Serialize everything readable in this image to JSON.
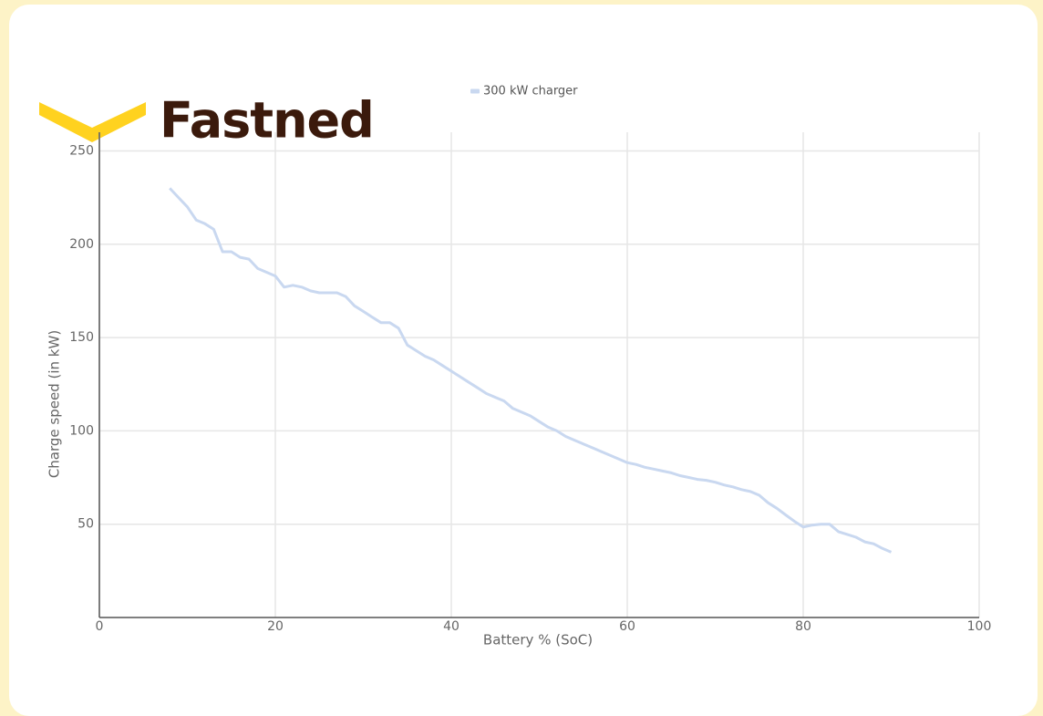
{
  "logo_text": "Fastned",
  "chart_data": {
    "type": "line",
    "x_label": "Battery % (SoC)",
    "y_label": "Charge speed (in kW)",
    "x": [
      8,
      9,
      10,
      11,
      12,
      13,
      14,
      15,
      16,
      17,
      18,
      19,
      20,
      21,
      22,
      23,
      24,
      25,
      26,
      27,
      28,
      29,
      30,
      31,
      32,
      33,
      34,
      35,
      36,
      37,
      38,
      39,
      40,
      41,
      42,
      43,
      44,
      45,
      46,
      47,
      48,
      49,
      50,
      51,
      52,
      53,
      54,
      55,
      56,
      57,
      58,
      59,
      60,
      61,
      62,
      63,
      64,
      65,
      66,
      67,
      68,
      69,
      70,
      71,
      72,
      73,
      74,
      75,
      76,
      77,
      78,
      79,
      80,
      81,
      82,
      83,
      84,
      85,
      86,
      87,
      88,
      89,
      90
    ],
    "series": [
      {
        "name": "300 kW charger",
        "color": "#c9d8f0",
        "values": [
          230,
          225,
          220,
          213,
          211,
          208,
          196,
          196,
          193,
          192,
          187,
          185,
          183,
          177,
          178,
          177,
          175,
          174,
          174,
          174,
          172,
          167,
          164,
          161,
          158,
          158,
          155,
          146,
          143,
          140,
          138,
          135,
          132,
          129,
          126,
          123,
          120,
          118,
          116,
          112,
          110,
          108,
          105,
          102,
          100,
          97,
          95,
          93,
          91,
          89,
          87,
          85,
          83,
          82,
          80.5,
          79.5,
          78.5,
          77.5,
          76,
          75,
          74,
          73.5,
          72.5,
          71,
          70,
          68.5,
          67.5,
          65.5,
          61.5,
          58.5,
          55,
          51.5,
          48.5,
          49.5,
          50,
          50,
          46,
          44.5,
          43,
          40.5,
          39.5,
          37,
          35
        ]
      }
    ],
    "xlim": [
      0,
      100
    ],
    "xticks": [
      0,
      20,
      40,
      60,
      80,
      100
    ],
    "ylim": [
      0,
      260
    ],
    "yticks": [
      50,
      100,
      150,
      200,
      250
    ],
    "grid": true,
    "legend": "top"
  }
}
